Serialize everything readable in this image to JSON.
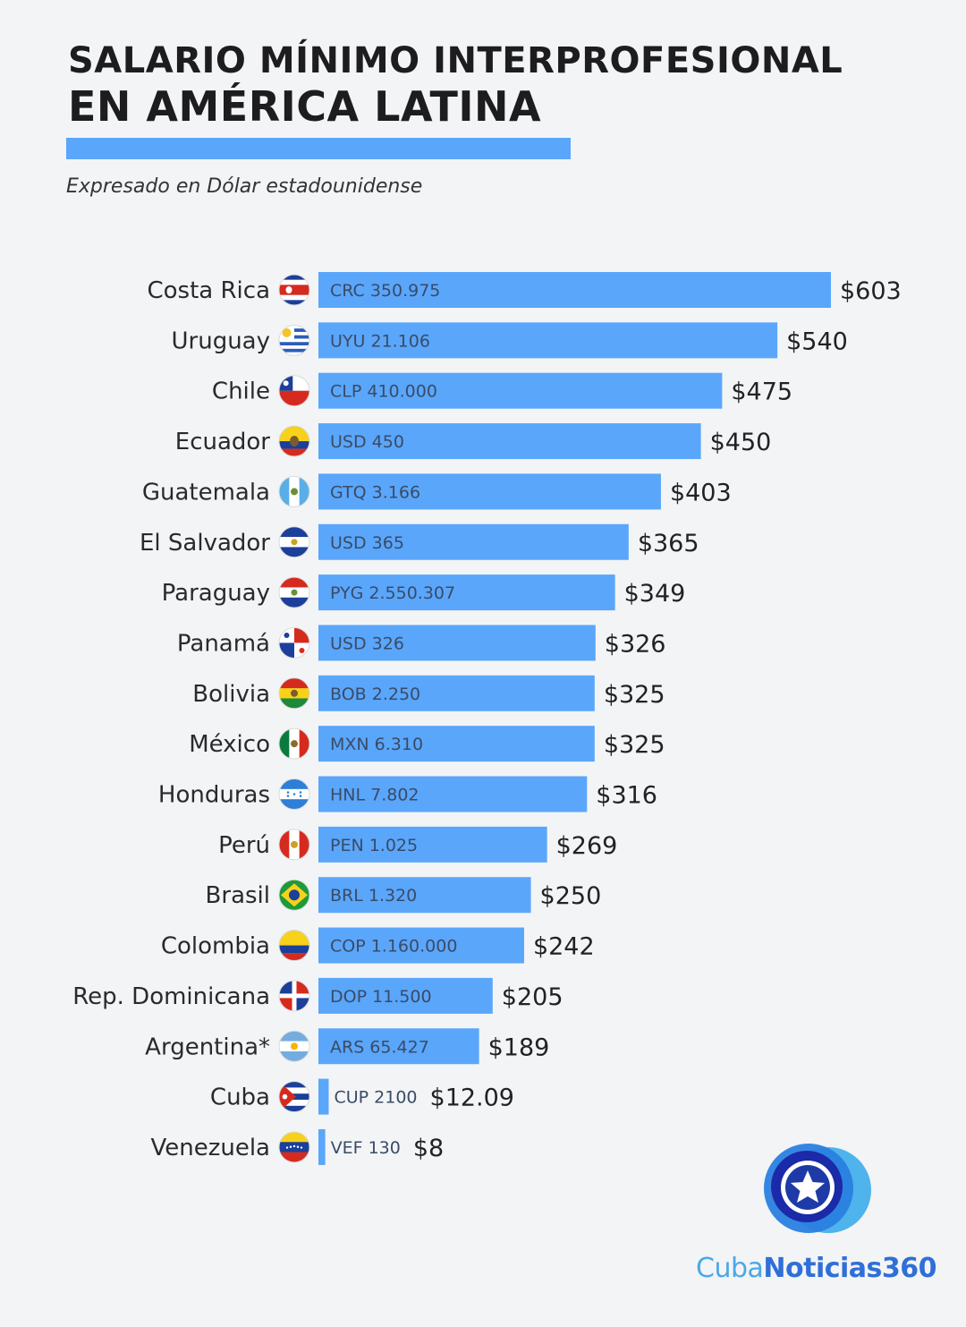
{
  "header": {
    "title_line1": "SALARIO MÍNIMO INTERPROFESIONAL",
    "title_line2": "EN AMÉRICA LATINA",
    "subtitle": "Expresado en Dólar estadounidense"
  },
  "colors": {
    "bar": "#5aa6fb",
    "accent": "#5aa6fb"
  },
  "chart_data": {
    "type": "bar",
    "orientation": "horizontal",
    "title": "SALARIO MÍNIMO INTERPROFESIONAL EN AMÉRICA LATINA",
    "subtitle": "Expresado en Dólar estadounidense",
    "grid": false,
    "xlim": [
      0,
      603
    ],
    "rows": [
      {
        "country": "Costa Rica",
        "flag": "costa-rica-flag-icon",
        "local": "CRC 350.975",
        "usd_label": "$603",
        "value": 603
      },
      {
        "country": "Uruguay",
        "flag": "uruguay-flag-icon",
        "local": "UYU 21.106",
        "usd_label": "$540",
        "value": 540
      },
      {
        "country": "Chile",
        "flag": "chile-flag-icon",
        "local": "CLP 410.000",
        "usd_label": "$475",
        "value": 475
      },
      {
        "country": "Ecuador",
        "flag": "ecuador-flag-icon",
        "local": "USD 450",
        "usd_label": "$450",
        "value": 450
      },
      {
        "country": "Guatemala",
        "flag": "guatemala-flag-icon",
        "local": "GTQ 3.166",
        "usd_label": "$403",
        "value": 403
      },
      {
        "country": "El Salvador",
        "flag": "el-salvador-flag-icon",
        "local": "USD 365",
        "usd_label": "$365",
        "value": 365
      },
      {
        "country": "Paraguay",
        "flag": "paraguay-flag-icon",
        "local": "PYG 2.550.307",
        "usd_label": "$349",
        "value": 349
      },
      {
        "country": "Panamá",
        "flag": "panama-flag-icon",
        "local": "USD 326",
        "usd_label": "$326",
        "value": 326
      },
      {
        "country": "Bolivia",
        "flag": "bolivia-flag-icon",
        "local": "BOB 2.250",
        "usd_label": "$325",
        "value": 325
      },
      {
        "country": "México",
        "flag": "mexico-flag-icon",
        "local": "MXN 6.310",
        "usd_label": "$325",
        "value": 325
      },
      {
        "country": "Honduras",
        "flag": "honduras-flag-icon",
        "local": "HNL 7.802",
        "usd_label": "$316",
        "value": 316
      },
      {
        "country": "Perú",
        "flag": "peru-flag-icon",
        "local": "PEN 1.025",
        "usd_label": "$269",
        "value": 269
      },
      {
        "country": "Brasil",
        "flag": "brazil-flag-icon",
        "local": "BRL 1.320",
        "usd_label": "$250",
        "value": 250
      },
      {
        "country": "Colombia",
        "flag": "colombia-flag-icon",
        "local": "COP 1.160.000",
        "usd_label": "$242",
        "value": 242
      },
      {
        "country": "Rep. Dominicana",
        "flag": "dominican-republic-flag-icon",
        "local": "DOP 11.500",
        "usd_label": "$205",
        "value": 205
      },
      {
        "country": "Argentina*",
        "flag": "argentina-flag-icon",
        "local": "ARS 65.427",
        "usd_label": "$189",
        "value": 189
      },
      {
        "country": "Cuba",
        "flag": "cuba-flag-icon",
        "local": "CUP 2100",
        "usd_label": "$12.09",
        "value": 12.09
      },
      {
        "country": "Venezuela",
        "flag": "venezuela-flag-icon",
        "local": "VEF 130",
        "usd_label": "$8",
        "value": 8
      }
    ]
  },
  "brand": {
    "logo_icon": "star-logo-icon",
    "name_part1": "Cuba",
    "name_part2": "Noticias360"
  }
}
